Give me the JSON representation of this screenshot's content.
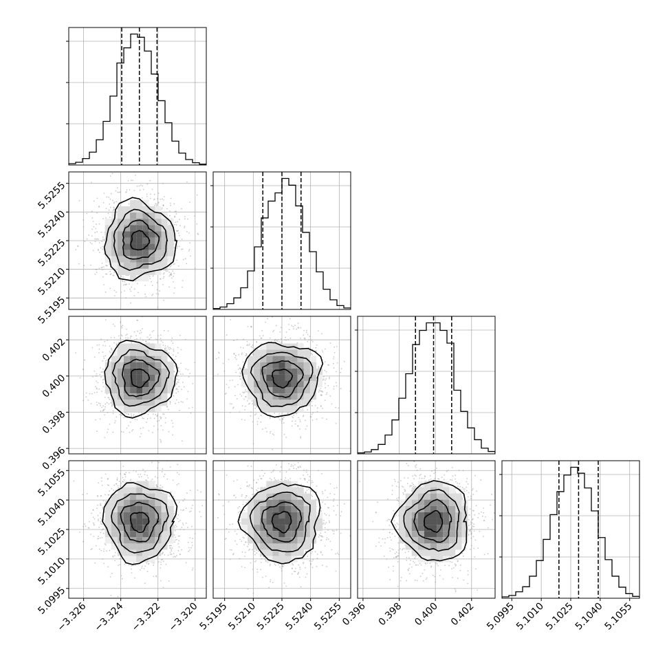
{
  "chart_data": {
    "type": "corner",
    "grid": true,
    "parameters": [
      {
        "ticks": [
          "−3.326",
          "−3.324",
          "−3.322",
          "−3.320"
        ],
        "tick_values": [
          -3.326,
          -3.324,
          -3.322,
          -3.32
        ],
        "range": [
          -3.3268,
          -3.3194
        ],
        "median": -3.323,
        "q16": -3.32395,
        "q84": -3.32205,
        "histogram": [
          3,
          6,
          14,
          28,
          55,
          95,
          150,
          222,
          255,
          285,
          278,
          248,
          198,
          140,
          92,
          52,
          26,
          12,
          5,
          2
        ]
      },
      {
        "ticks": [
          "5.5195",
          "5.5210",
          "5.5225",
          "5.5240",
          "5.5255"
        ],
        "tick_values": [
          5.5195,
          5.521,
          5.5225,
          5.524,
          5.5255
        ],
        "range": [
          5.5189,
          5.5261
        ],
        "median": 5.5225,
        "q16": 5.5215,
        "q84": 5.5235,
        "histogram": [
          2,
          5,
          12,
          24,
          45,
          80,
          130,
          190,
          225,
          242,
          272,
          258,
          215,
          160,
          120,
          78,
          42,
          20,
          8,
          3
        ]
      },
      {
        "ticks": [
          "0.396",
          "0.398",
          "0.400",
          "0.402"
        ],
        "tick_values": [
          0.396,
          0.398,
          0.4,
          0.402
        ],
        "range": [
          0.3957,
          0.4033
        ],
        "median": 0.3999,
        "q16": 0.3989,
        "q84": 0.4009,
        "histogram": [
          2,
          4,
          9,
          20,
          40,
          72,
          118,
          170,
          232,
          262,
          278,
          278,
          262,
          235,
          135,
          90,
          55,
          30,
          12,
          5
        ]
      },
      {
        "ticks": [
          "5.0995",
          "5.1010",
          "5.1025",
          "5.1040",
          "5.1055"
        ],
        "tick_values": [
          5.0995,
          5.101,
          5.1025,
          5.104,
          5.1055
        ],
        "range": [
          5.099,
          5.106
        ],
        "median": 5.1029,
        "q16": 5.1019,
        "q84": 5.1039,
        "histogram": [
          3,
          6,
          14,
          25,
          48,
          82,
          128,
          182,
          232,
          268,
          285,
          272,
          240,
          190,
          132,
          84,
          48,
          24,
          10,
          4
        ]
      }
    ]
  }
}
